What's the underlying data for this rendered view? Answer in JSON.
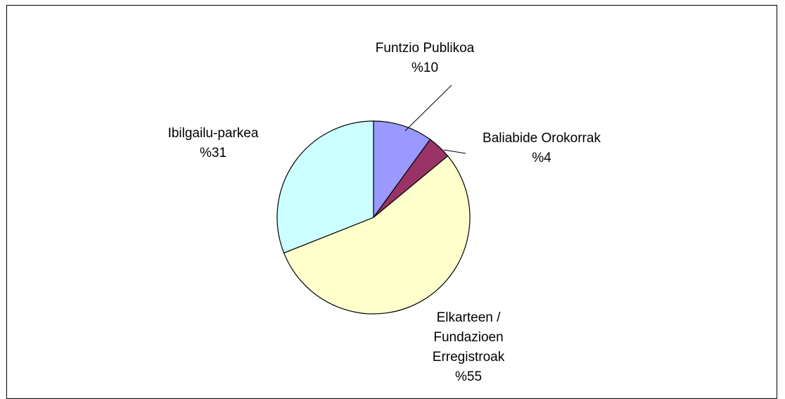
{
  "chart_data": {
    "type": "pie",
    "title": "",
    "start_angle_deg": 0,
    "direction": "clockwise",
    "legend": "none",
    "slices": [
      {
        "label": "Funtzio Publikoa",
        "value": 10,
        "value_label": "%10",
        "color": "#9999ff"
      },
      {
        "label": "Baliabide Orokorrak",
        "value": 4,
        "value_label": "%4",
        "color": "#993366"
      },
      {
        "label": "Elkarteen / Fundazioen Erregistroak",
        "value": 55,
        "value_label": "%55",
        "color": "#ffffcc"
      },
      {
        "label": "Ibilgailu-parkea",
        "value": 31,
        "value_label": "%31",
        "color": "#ccffff"
      }
    ]
  }
}
